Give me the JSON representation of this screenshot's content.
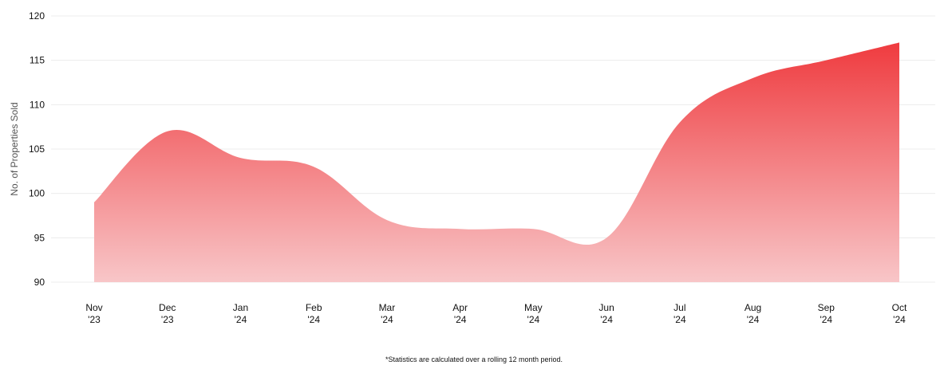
{
  "chart_data": {
    "type": "area",
    "categories": [
      [
        "Nov",
        "'23"
      ],
      [
        "Dec",
        "'23"
      ],
      [
        "Jan",
        "'24"
      ],
      [
        "Feb",
        "'24"
      ],
      [
        "Mar",
        "'24"
      ],
      [
        "Apr",
        "'24"
      ],
      [
        "May",
        "'24"
      ],
      [
        "Jun",
        "'24"
      ],
      [
        "Jul",
        "'24"
      ],
      [
        "Aug",
        "'24"
      ],
      [
        "Sep",
        "'24"
      ],
      [
        "Oct",
        "'24"
      ]
    ],
    "values": [
      99,
      107,
      104,
      103,
      97,
      96,
      96,
      95,
      108,
      113,
      115,
      117
    ],
    "ylabel": "No. of Properties Sold",
    "ylim": [
      90,
      120
    ],
    "yticks": [
      90,
      95,
      100,
      105,
      110,
      115,
      120
    ],
    "grid": true,
    "colors": {
      "top": "#ef3b3f",
      "bottom": "#f8c6c8",
      "grid": "#ececec"
    }
  },
  "footnote": "*Statistics are calculated over a rolling 12 month period."
}
